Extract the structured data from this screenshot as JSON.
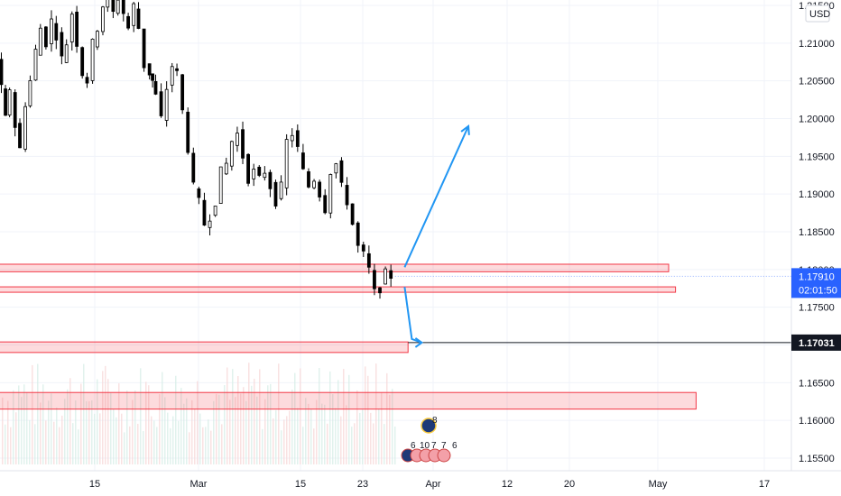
{
  "chart_data": {
    "type": "candlestick",
    "instrument_currency": "USD",
    "y_axis": {
      "range": [
        1.1525,
        1.217
      ],
      "ticks": [
        "1.21500",
        "1.21000",
        "1.20500",
        "1.20000",
        "1.19500",
        "1.19000",
        "1.18500",
        "1.18000",
        "1.17500",
        "1.17000",
        "1.16500",
        "1.16000",
        "1.15500"
      ],
      "tick_values": [
        1.215,
        1.21,
        1.205,
        1.2,
        1.195,
        1.19,
        1.185,
        1.18,
        1.175,
        1.17,
        1.165,
        1.16,
        1.155
      ]
    },
    "x_axis": {
      "ticks": [
        "15",
        "Mar",
        "15",
        "23",
        "Apr",
        "12",
        "20",
        "May",
        "17"
      ]
    },
    "last_price": {
      "label": "1.17910",
      "value": 1.1791,
      "countdown": "02:01:50",
      "color": "#2962ff"
    },
    "marked_level": {
      "label": "1.17031",
      "value": 1.17031,
      "color": "#131722"
    },
    "price_path": [
      [
        0,
        1.208
      ],
      [
        0.6,
        1.204
      ],
      [
        1.2,
        1.2
      ],
      [
        2,
        1.204
      ],
      [
        2.7,
        1.199
      ],
      [
        3.5,
        1.196
      ],
      [
        4.2,
        1.202
      ],
      [
        5,
        1.205
      ],
      [
        5.7,
        1.209
      ],
      [
        6.5,
        1.212
      ],
      [
        7.3,
        1.21
      ],
      [
        8,
        1.213
      ],
      [
        8.8,
        1.211
      ],
      [
        9.5,
        1.208
      ],
      [
        10.3,
        1.21
      ],
      [
        11,
        1.214
      ],
      [
        11.8,
        1.21
      ],
      [
        12.5,
        1.206
      ],
      [
        13.3,
        1.205
      ],
      [
        14,
        1.21
      ],
      [
        14.8,
        1.212
      ],
      [
        15.5,
        1.215
      ],
      [
        16.3,
        1.216
      ],
      [
        17,
        1.214
      ],
      [
        17.8,
        1.216
      ],
      [
        18.5,
        1.214
      ],
      [
        19.3,
        1.212
      ],
      [
        20,
        1.215
      ],
      [
        20.8,
        1.212
      ],
      [
        21.6,
        1.207
      ],
      [
        22.5,
        1.205
      ],
      [
        23.3,
        1.203
      ],
      [
        24.1,
        1.2
      ],
      [
        24.9,
        1.204
      ],
      [
        25.6,
        1.207
      ],
      [
        26.4,
        1.206
      ],
      [
        27.2,
        1.201
      ],
      [
        28,
        1.196
      ],
      [
        28.8,
        1.191
      ],
      [
        29.6,
        1.189
      ],
      [
        30.4,
        1.186
      ],
      [
        31.2,
        1.187
      ],
      [
        32,
        1.189
      ],
      [
        32.8,
        1.193
      ],
      [
        33.6,
        1.194
      ],
      [
        34.4,
        1.197
      ],
      [
        35.2,
        1.198
      ],
      [
        36,
        1.195
      ],
      [
        36.8,
        1.192
      ],
      [
        37.6,
        1.193
      ],
      [
        38.4,
        1.192
      ],
      [
        39.2,
        1.193
      ],
      [
        40,
        1.191
      ],
      [
        40.8,
        1.189
      ],
      [
        41.6,
        1.191
      ],
      [
        42.4,
        1.197
      ],
      [
        43.2,
        1.198
      ],
      [
        44,
        1.196
      ],
      [
        44.8,
        1.193
      ],
      [
        45.6,
        1.191
      ],
      [
        46.4,
        1.192
      ],
      [
        47.2,
        1.19
      ],
      [
        48,
        1.188
      ],
      [
        48.8,
        1.193
      ],
      [
        49.6,
        1.194
      ],
      [
        50.4,
        1.191
      ],
      [
        51.2,
        1.189
      ],
      [
        52,
        1.186
      ],
      [
        52.8,
        1.183
      ],
      [
        53.6,
        1.182
      ],
      [
        54.4,
        1.18
      ],
      [
        55.2,
        1.177
      ],
      [
        56,
        1.1775
      ],
      [
        56.8,
        1.1795
      ],
      [
        57.4,
        1.1791
      ]
    ],
    "zones": [
      {
        "name": "resistance-zone-upper",
        "y_top": 1.1807,
        "y_bottom": 1.1797,
        "x_end": 97.5
      },
      {
        "name": "support-zone-1",
        "y_top": 1.1777,
        "y_bottom": 1.177,
        "x_end": 98.5
      },
      {
        "name": "support-zone-2",
        "y_top": 1.1704,
        "y_bottom": 1.169,
        "x_end": 59.5
      },
      {
        "name": "support-zone-3",
        "y_top": 1.1637,
        "y_bottom": 1.1615,
        "x_end": 101.5
      }
    ],
    "projections": [
      {
        "name": "bullish-projection-arrow",
        "from": [
          59,
          1.1803
        ],
        "to": [
          68.3,
          1.199
        ],
        "color": "#2196f3"
      },
      {
        "name": "bearish-projection-arrow",
        "from": [
          59,
          1.1777
        ],
        "to": [
          61.5,
          1.17031
        ],
        "color": "#2196f3"
      }
    ],
    "events": {
      "top_count": "8",
      "bottom_counts": [
        "6",
        "10",
        "7",
        "7",
        "6"
      ]
    }
  }
}
